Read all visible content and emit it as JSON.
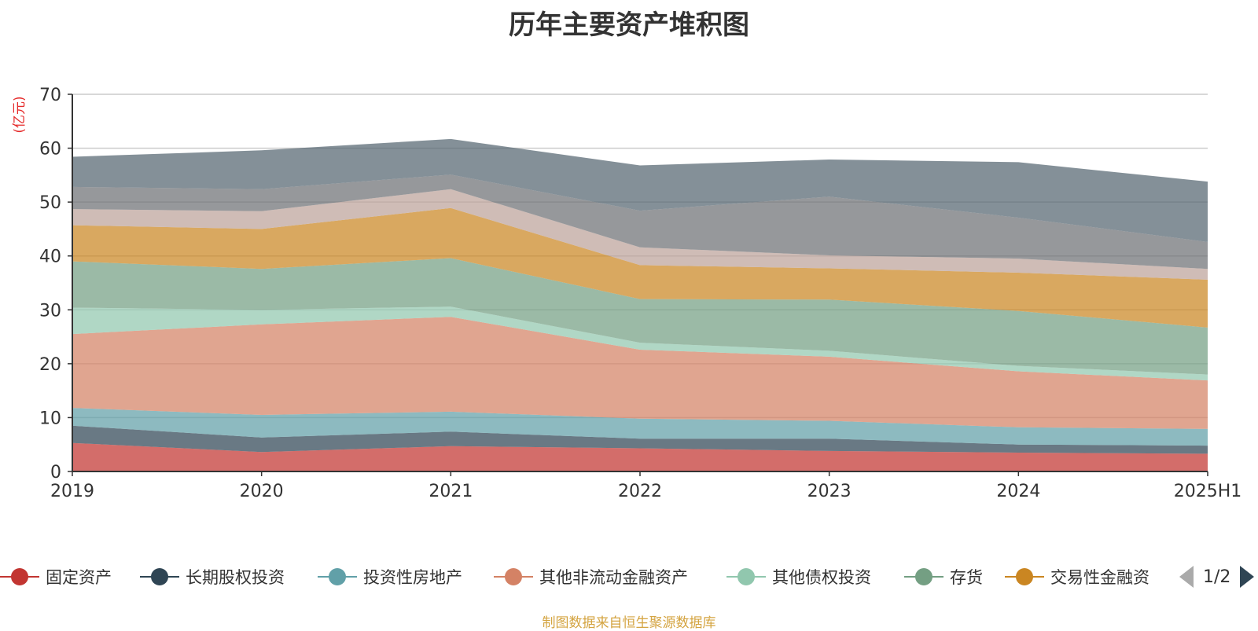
{
  "chart_data": {
    "type": "area",
    "stacked": true,
    "title": "历年主要资产堆积图",
    "ylabel": "(亿元)",
    "xlabel": "",
    "categories": [
      "2019",
      "2020",
      "2021",
      "2022",
      "2023",
      "2024",
      "2025H1"
    ],
    "ylim": [
      0,
      70
    ],
    "yticks": [
      0,
      10,
      20,
      30,
      40,
      50,
      60,
      70
    ],
    "grid": true,
    "legend_position": "bottom",
    "series": [
      {
        "name": "固定资产",
        "color": "#c23531",
        "values": [
          5.3,
          3.6,
          4.7,
          4.3,
          3.8,
          3.5,
          3.3
        ]
      },
      {
        "name": "长期股权投资",
        "color": "#2f4554",
        "values": [
          3.2,
          2.7,
          2.7,
          1.8,
          2.3,
          1.5,
          1.5
        ]
      },
      {
        "name": "投资性房地产",
        "color": "#61a0a8",
        "values": [
          3.3,
          4.2,
          3.7,
          3.7,
          3.3,
          3.2,
          3.1
        ]
      },
      {
        "name": "其他非流动金融资产",
        "color": "#d48265",
        "values": [
          13.7,
          16.8,
          17.6,
          12.8,
          11.9,
          10.4,
          9.0
        ]
      },
      {
        "name": "其他债权投资",
        "color": "#91c7ae",
        "values": [
          4.9,
          2.7,
          1.9,
          1.3,
          1.1,
          1.0,
          1.1
        ]
      },
      {
        "name": "存货",
        "color": "#749f83",
        "values": [
          8.6,
          7.6,
          9.0,
          8.1,
          9.5,
          10.2,
          8.7
        ]
      },
      {
        "name": "交易性金融资",
        "color": "#ca8622",
        "values": [
          6.7,
          7.4,
          9.3,
          6.3,
          5.8,
          7.1,
          8.9
        ]
      },
      {
        "name": "",
        "color": "#bda29a",
        "values": [
          3.0,
          3.3,
          3.5,
          3.3,
          2.4,
          2.6,
          2.0
        ]
      },
      {
        "name": "",
        "color": "#6e7074",
        "values": [
          4.1,
          4.1,
          2.7,
          6.8,
          10.9,
          7.6,
          5.0
        ]
      },
      {
        "name": "",
        "color": "#546570",
        "values": [
          5.6,
          7.2,
          6.6,
          8.4,
          6.9,
          10.3,
          11.2
        ]
      }
    ]
  },
  "legend": {
    "items": [
      {
        "label": "固定资产",
        "color": "#c23531"
      },
      {
        "label": "长期股权投资",
        "color": "#2f4554"
      },
      {
        "label": "投资性房地产",
        "color": "#61a0a8"
      },
      {
        "label": "其他非流动金融资产",
        "color": "#d48265"
      },
      {
        "label": "其他债权投资",
        "color": "#91c7ae"
      },
      {
        "label": "存货",
        "color": "#749f83"
      },
      {
        "label": "交易性金融资",
        "color": "#ca8622"
      }
    ],
    "pager_text": "1/2"
  },
  "source_note": "制图数据来自恒生聚源数据库"
}
